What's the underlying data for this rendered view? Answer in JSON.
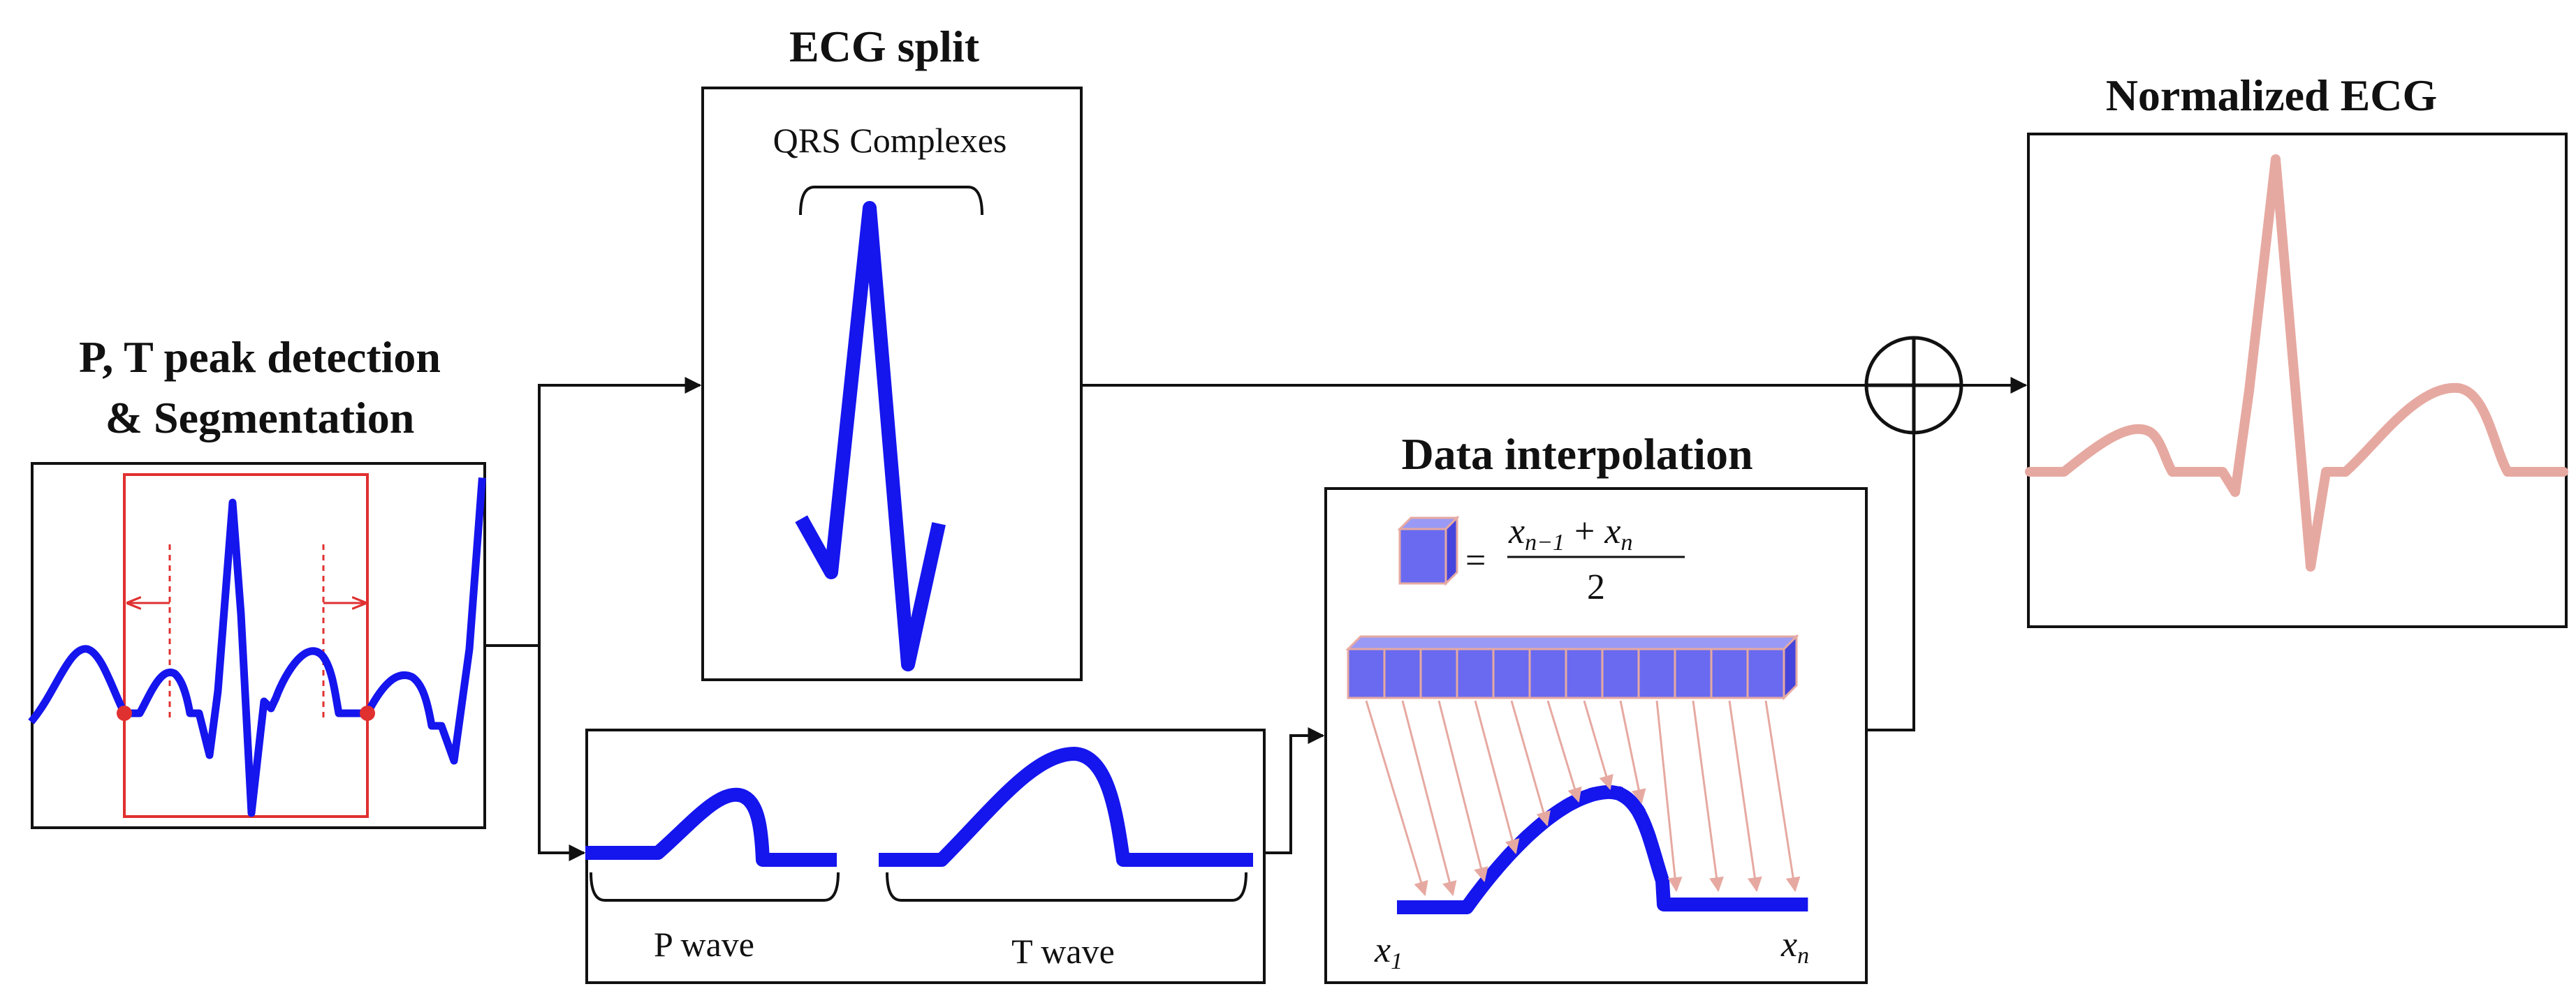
{
  "titles": {
    "segmentation_line1": "P, T peak detection",
    "segmentation_line2": "& Segmentation",
    "ecg_split": "ECG split",
    "data_interpolation": "Data interpolation",
    "normalized_ecg": "Normalized ECG"
  },
  "labels": {
    "qrs_complexes": "QRS Complexes",
    "p_wave": "P wave",
    "t_wave": "T wave"
  },
  "formula": {
    "numerator_a": "x",
    "numerator_a_sub": "n−1",
    "plus": "+",
    "numerator_b": "x",
    "numerator_b_sub": "n",
    "equals": "=",
    "denominator": "2"
  },
  "samples": {
    "first": "x",
    "first_sub": "1",
    "last": "x",
    "last_sub": "n"
  },
  "colors": {
    "signal": "#1515ee",
    "normalized_signal": "#e6a9a1",
    "segment_marker": "#e03030",
    "cube_fill": "#6a6af0",
    "interp_arrow": "#e6a9a1"
  },
  "icons": {
    "combine": "circle-plus-icon",
    "data_point": "cube-icon"
  }
}
